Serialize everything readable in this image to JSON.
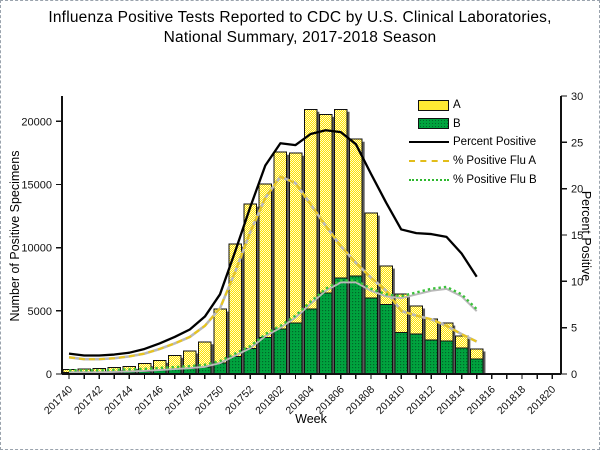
{
  "ui": {
    "title_line1": "Influenza Positive Tests Reported to CDC by U.S. Clinical Laboratories,",
    "title_line2": "National Summary, 2017-2018 Season"
  },
  "legend": {
    "position": "top-right",
    "items": [
      {
        "label": "A",
        "swatch": "bar",
        "color": "#ffe400"
      },
      {
        "label": "B",
        "swatch": "bar",
        "color": "#00a33e"
      },
      {
        "label": "Percent Positive",
        "swatch": "line-solid",
        "color": "#000000"
      },
      {
        "label": "% Positive Flu A",
        "swatch": "line-dashed",
        "color": "#e2bd1a"
      },
      {
        "label": "% Positive Flu B",
        "swatch": "line-dotted",
        "color": "#2eb82e"
      }
    ]
  },
  "chart_data": {
    "type": "combo-stacked-bar-line",
    "title": "Influenza Positive Tests Reported to CDC by U.S. Clinical Laboratories, National Summary, 2017-2018 Season",
    "xlabel": "Week",
    "ylabel_left": "Number of Positive Specimens",
    "ylabel_right": "Percent Positive",
    "grid": false,
    "y_left_ticks": [
      0,
      5000,
      10000,
      15000,
      20000
    ],
    "y_left_max": 22000,
    "y_right_ticks": [
      0,
      5,
      10,
      15,
      20,
      25,
      30
    ],
    "y_right_max": 30,
    "x_label_every": 2,
    "x_categories": [
      "201740",
      "201741",
      "201742",
      "201743",
      "201744",
      "201745",
      "201746",
      "201747",
      "201748",
      "201749",
      "201750",
      "201751",
      "201752",
      "201801",
      "201802",
      "201803",
      "201804",
      "201805",
      "201806",
      "201807",
      "201808",
      "201809",
      "201810",
      "201811",
      "201812",
      "201813",
      "201814",
      "201815",
      "201816",
      "201817",
      "201818",
      "201819",
      "201820"
    ],
    "series": [
      {
        "name": "A",
        "type": "bar",
        "stack": "specimens",
        "axis": "left",
        "color": "#ffe400",
        "values": [
          240,
          290,
          330,
          370,
          450,
          615,
          780,
          1095,
          1370,
          2000,
          4270,
          8880,
          11440,
          12120,
          14000,
          13420,
          15800,
          14150,
          13350,
          10830,
          6730,
          3040,
          3050,
          2220,
          1650,
          1430,
          940,
          790
        ]
      },
      {
        "name": "B",
        "type": "bar",
        "stack": "specimens",
        "axis": "left",
        "color": "#00a33e",
        "values": [
          100,
          110,
          120,
          130,
          150,
          200,
          300,
          380,
          450,
          550,
          870,
          1400,
          2000,
          2900,
          3550,
          4050,
          5150,
          6400,
          7600,
          7750,
          6000,
          5500,
          3270,
          3160,
          2700,
          2600,
          2060,
          1190
        ]
      },
      {
        "name": "Percent Positive",
        "type": "line",
        "style": "solid",
        "axis": "right",
        "color": "#000000",
        "values": [
          2.2,
          2.0,
          2.0,
          2.1,
          2.3,
          2.7,
          3.3,
          4.0,
          4.8,
          6.2,
          8.6,
          13.2,
          18.0,
          22.5,
          24.9,
          24.7,
          25.9,
          26.3,
          26.1,
          24.8,
          21.6,
          18.5,
          15.6,
          15.2,
          15.1,
          14.8,
          13.0,
          10.5
        ]
      },
      {
        "name": "% Positive Flu A",
        "type": "line",
        "style": "dashed",
        "axis": "right",
        "color": "#e8c51e",
        "values": [
          1.8,
          1.6,
          1.6,
          1.7,
          1.9,
          2.2,
          2.7,
          3.3,
          4.0,
          5.2,
          7.1,
          11.0,
          15.3,
          19.0,
          21.3,
          20.6,
          18.3,
          16.0,
          13.8,
          12.0,
          10.4,
          9.0,
          6.8,
          6.3,
          5.9,
          5.2,
          4.3,
          3.5
        ]
      },
      {
        "name": "% Positive Flu B",
        "type": "line",
        "style": "dotted",
        "axis": "right",
        "color": "#3cc13c",
        "values": [
          0.4,
          0.4,
          0.4,
          0.45,
          0.5,
          0.55,
          0.65,
          0.75,
          0.85,
          1.0,
          1.4,
          2.2,
          3.0,
          4.3,
          5.2,
          6.3,
          7.8,
          9.2,
          10.1,
          10.1,
          9.2,
          8.6,
          8.4,
          8.8,
          9.2,
          9.4,
          8.6,
          7.0
        ]
      }
    ]
  }
}
